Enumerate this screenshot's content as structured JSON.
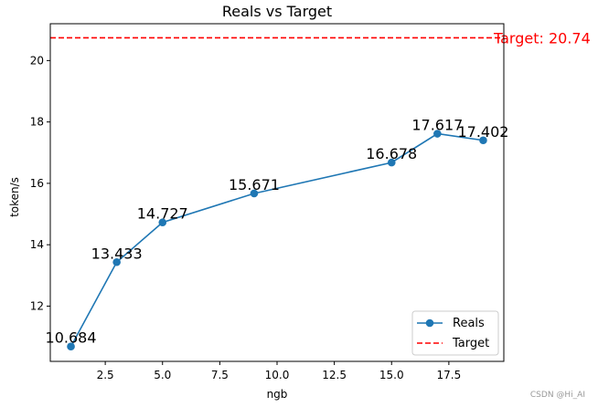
{
  "chart_data": {
    "type": "line",
    "title": "Reals vs Target",
    "xlabel": "ngb",
    "ylabel": "token/s",
    "xlim": [
      0.1,
      19.9
    ],
    "ylim": [
      10.2,
      21.2
    ],
    "x_ticks": [
      2.5,
      5.0,
      7.5,
      10.0,
      12.5,
      15.0,
      17.5
    ],
    "x_tick_labels": [
      "2.5",
      "5.0",
      "7.5",
      "10.0",
      "12.5",
      "15.0",
      "17.5"
    ],
    "y_ticks": [
      12,
      14,
      16,
      18,
      20
    ],
    "y_tick_labels": [
      "12",
      "14",
      "16",
      "18",
      "20"
    ],
    "grid": false,
    "legend_position": "lower-right",
    "series": [
      {
        "name": "Reals",
        "color": "#1f77b4",
        "marker": "circle",
        "x": [
          1,
          3,
          5,
          9,
          15,
          17,
          19
        ],
        "y": [
          10.684,
          13.433,
          14.727,
          15.671,
          16.678,
          17.617,
          17.402
        ],
        "point_labels": [
          "10.684",
          "13.433",
          "14.727",
          "15.671",
          "16.678",
          "17.617",
          "17.402"
        ]
      }
    ],
    "target_line": {
      "name": "Target",
      "value": 20.74,
      "color": "#ff0000",
      "style": "dashed",
      "label": "Target: 20.74"
    }
  },
  "watermark": "CSDN @Hi_AI"
}
